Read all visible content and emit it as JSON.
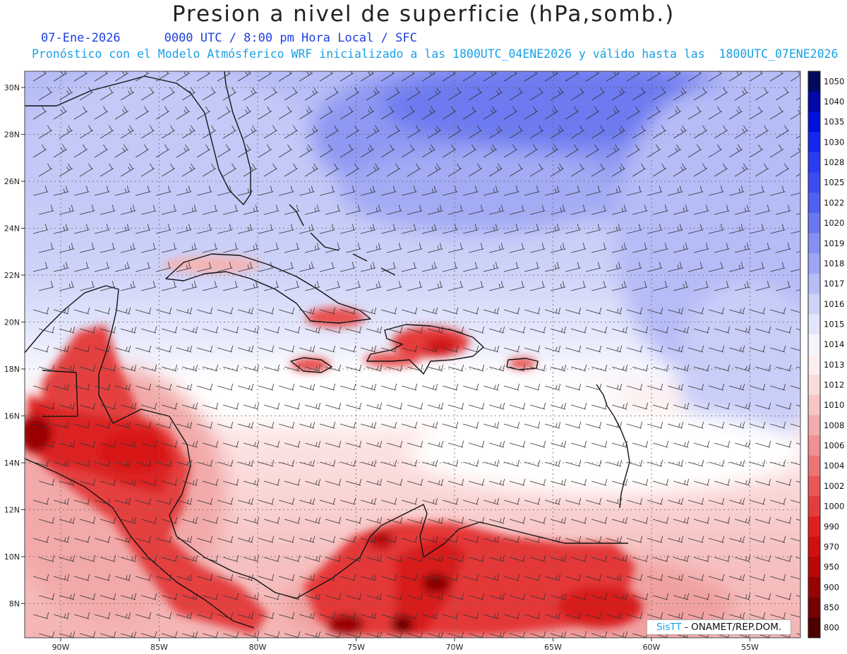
{
  "header": {
    "title": "Presion a nivel de superficie (hPa,somb.)",
    "date": "07-Ene-2026",
    "time_info": "0000 UTC / 8:00 pm Hora Local / SFC",
    "forecast_info": "Pronóstico con el Modelo Atmósferico WRF inicializado a las 1800UTC_04ENE2026 y válido hasta las  1800UTC_07ENE2026"
  },
  "axes": {
    "lat_labels": [
      "30N",
      "28N",
      "26N",
      "24N",
      "22N",
      "20N",
      "18N",
      "16N",
      "14N",
      "12N",
      "10N",
      "8N"
    ],
    "lon_labels": [
      "90W",
      "85W",
      "80W",
      "75W",
      "70W",
      "65W",
      "60W",
      "55W"
    ]
  },
  "colorbar": {
    "levels": [
      "1050",
      "1040",
      "1035",
      "1030",
      "1028",
      "1025",
      "1022",
      "1020",
      "1019",
      "1018",
      "1017",
      "1016",
      "1015",
      "1014",
      "1013",
      "1012",
      "1010",
      "1008",
      "1006",
      "1004",
      "1002",
      "1000",
      "990",
      "970",
      "950",
      "900",
      "850",
      "800"
    ],
    "colors": [
      "#000a5e",
      "#0008a8",
      "#0010dc",
      "#1428f0",
      "#2a3cf0",
      "#3d4cf0",
      "#5060f0",
      "#6a78f0",
      "#8590f2",
      "#9da6f4",
      "#b5bcf6",
      "#cdd2f8",
      "#e2e5fb",
      "#f4f5fd",
      "#fdeeee",
      "#fbdada",
      "#f8c4c4",
      "#f4abab",
      "#f09090",
      "#ec7474",
      "#e85858",
      "#e43c3c",
      "#e02020",
      "#d01010",
      "#b80808",
      "#960404",
      "#780202",
      "#4c0000"
    ]
  },
  "credit": {
    "sis": "SisTT",
    "org": " - ONAMET/REP.DOM."
  }
}
